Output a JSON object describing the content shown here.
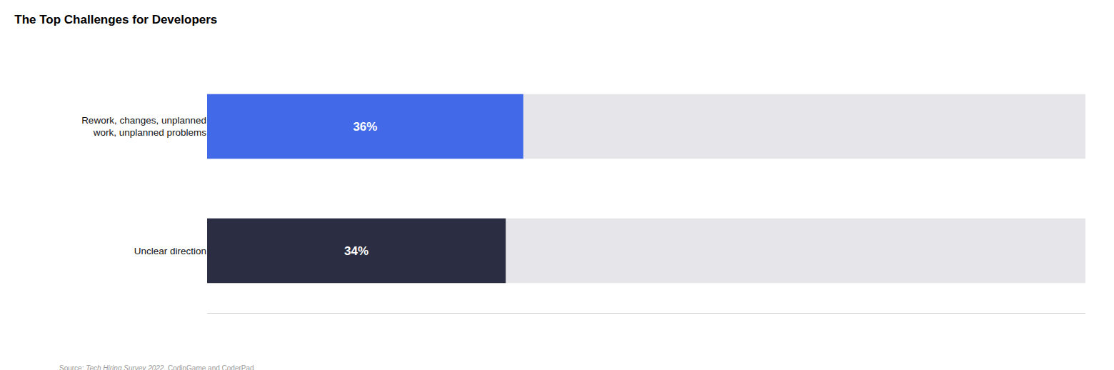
{
  "chart_data": {
    "type": "bar",
    "orientation": "horizontal",
    "title": "The Top Challenges for Developers",
    "categories": [
      "Rework, changes, unplanned\nwork, unplanned problems",
      "Unclear direction"
    ],
    "values": [
      36,
      34
    ],
    "value_labels": [
      "36%",
      "34%"
    ],
    "colors": [
      "#4169E8",
      "#2B2D42"
    ],
    "data_labels": true,
    "xlim": [
      0,
      100
    ],
    "tick_labels": "y",
    "grid": false,
    "annotations": [
      "Source: ",
      "Tech Hiring Survey 2022",
      ", CodinGame and CoderPad"
    ]
  }
}
